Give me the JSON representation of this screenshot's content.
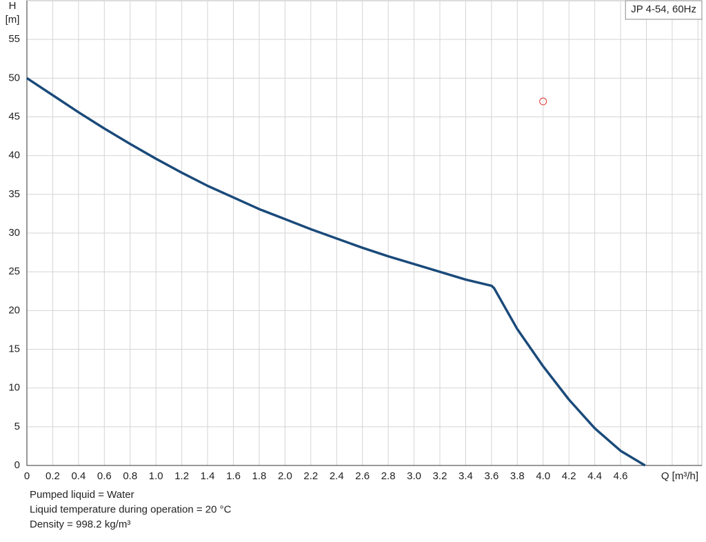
{
  "chart_data": {
    "type": "line",
    "y_label": [
      "H",
      "[m]"
    ],
    "x_label": "Q [m³/h]",
    "x": [
      0,
      0.2,
      0.4,
      0.6,
      0.8,
      1.0,
      1.2,
      1.4,
      1.6,
      1.8,
      2.0,
      2.2,
      2.4,
      2.6,
      2.8,
      3.0,
      3.2,
      3.4,
      3.6,
      3.62,
      3.8,
      4.0,
      4.2,
      4.4,
      4.6,
      4.79
    ],
    "series": [
      {
        "name": "JP 4-54, 60Hz",
        "color": "#1a4a7a",
        "values": [
          50,
          47.8,
          45.6,
          43.5,
          41.5,
          39.6,
          37.8,
          36.1,
          34.6,
          33.1,
          31.8,
          30.5,
          29.3,
          28.1,
          27.0,
          26.0,
          25.0,
          24.0,
          23.2,
          22.9,
          17.6,
          12.8,
          8.5,
          4.8,
          1.9,
          0
        ]
      },
      {
        "color": "#e03030",
        "marker": "circle",
        "x": [
          4.0
        ],
        "values": [
          47
        ]
      }
    ],
    "xlim": [
      0,
      5.23
    ],
    "ylim": [
      0,
      60
    ],
    "xticks": [
      0,
      0.2,
      0.4,
      0.6,
      0.8,
      {
        "value": 1,
        "label": "1.0"
      },
      1.2,
      1.4,
      1.6,
      1.8,
      {
        "value": 2,
        "label": "2.0"
      },
      2.2,
      2.4,
      2.6,
      2.8,
      {
        "value": 3,
        "label": "3.0"
      },
      3.2,
      3.4,
      3.6,
      3.8,
      {
        "value": 4,
        "label": "4.0"
      },
      4.2,
      4.4,
      4.6
    ],
    "xgrid": [
      4.8,
      5.0,
      5.2
    ],
    "yticks": [
      0,
      5,
      10,
      15,
      20,
      25,
      30,
      35,
      40,
      45,
      50,
      55
    ],
    "grid": true,
    "legend": "top-right",
    "notes": [
      "Pumped liquid = Water",
      "Liquid temperature during operation = 20 °C",
      "Density = 998.2 kg/m³"
    ]
  }
}
